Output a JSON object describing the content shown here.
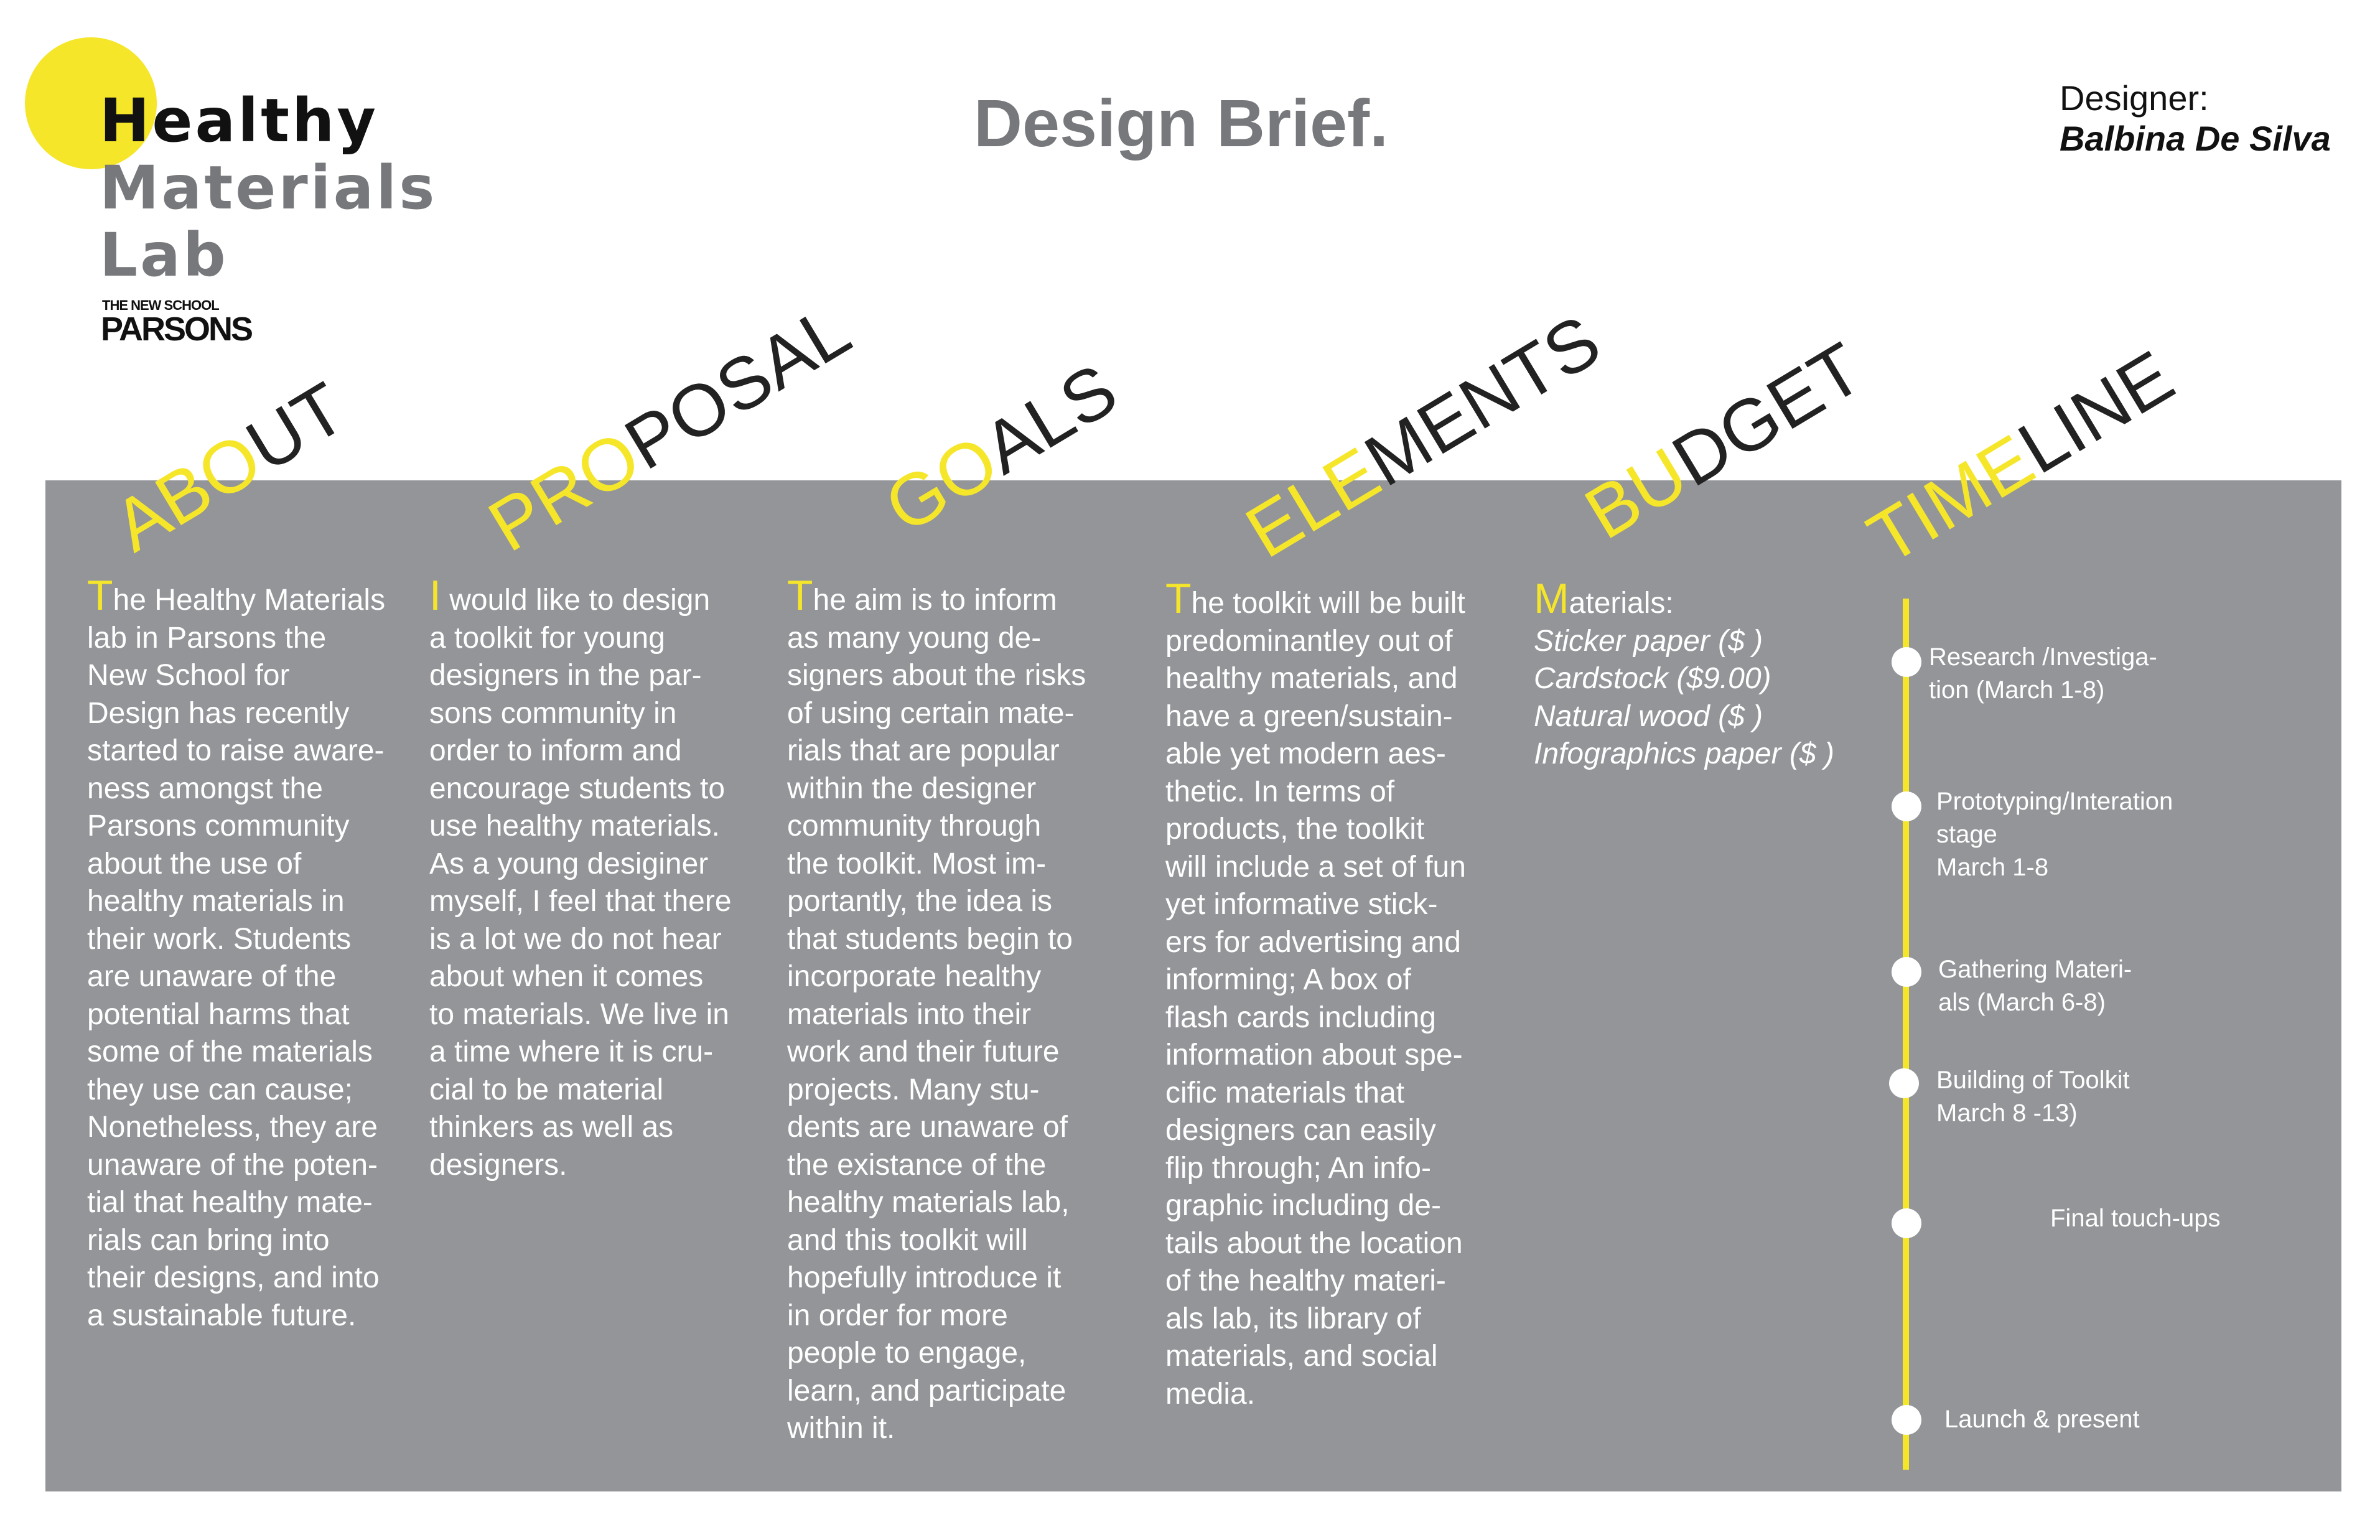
{
  "logo": {
    "line1": "Healthy",
    "line2": "Materials",
    "line3": "Lab",
    "sub": "THE NEW SCHOOL",
    "brand": "PARSONS"
  },
  "title": "Design Brief.",
  "designer": {
    "label": "Designer:",
    "name": "Balbina De Silva"
  },
  "colors": {
    "accent": "#f6e62a",
    "panel": "#939598",
    "text_gray": "#77787b"
  },
  "headings": {
    "about": {
      "accent": "ABO",
      "rest": "UT"
    },
    "proposal": {
      "accent": "PRO",
      "rest": "POSAL"
    },
    "goals": {
      "accent": "GO",
      "rest": "ALS"
    },
    "elements": {
      "accent": "ELE",
      "rest": "MENTS"
    },
    "budget": {
      "accent": "BU",
      "rest": "DGET"
    },
    "timeline": {
      "accent": "TIME",
      "rest": "LINE"
    }
  },
  "about": {
    "drop": "T",
    "lines": [
      "he Healthy Materials",
      "lab in Parsons the",
      "New School for",
      "Design has recently",
      "started to raise aware-",
      "ness amongst the",
      "Parsons community",
      "about the use of",
      "healthy materials in",
      "their work. Students",
      "are unaware of the",
      "potential harms that",
      "some of the materials",
      "they use can cause;",
      "Nonetheless, they are",
      "unaware of the poten-",
      "tial that healthy mate-",
      "rials can bring into",
      "their designs, and into",
      "a sustainable future."
    ]
  },
  "proposal": {
    "drop": "I",
    "lines": [
      " would like to design",
      "a toolkit for young",
      "designers in the par-",
      "sons community in",
      "order to inform and",
      "encourage students to",
      "use healthy materials.",
      "As a young desiginer",
      "myself, I feel that there",
      "is a lot we do not hear",
      "about when it comes",
      "to materials. We live in",
      "a time where it is cru-",
      "cial to be material",
      "thinkers as well as",
      "designers."
    ]
  },
  "goals": {
    "drop": "T",
    "lines": [
      "he aim is to inform",
      "as many young de-",
      "signers about the risks",
      "of using certain mate-",
      "rials that are popular",
      "within the designer",
      "community through",
      "the toolkit. Most im-",
      "portantly, the idea is",
      "that students begin to",
      "incorporate healthy",
      "materials into their",
      "work and their future",
      "projects. Many stu-",
      "dents are unaware of",
      "the existance of the",
      "healthy materials lab,",
      "and this toolkit will",
      "hopefully introduce it",
      "in order for more",
      "people to engage,",
      "learn, and participate",
      "within it."
    ]
  },
  "elements": {
    "drop": "T",
    "lines": [
      "he toolkit will be built",
      "predominantley out of",
      "healthy materials, and",
      "have a green/sustain-",
      "able yet modern aes-",
      "thetic. In terms of",
      "products, the toolkit",
      "will include a set of fun",
      "yet informative stick-",
      "ers for advertising and",
      "informing; A box of",
      "flash cards including",
      "information about spe-",
      "cific materials that",
      "designers can easily",
      "flip through; An info-",
      "graphic including de-",
      "tails about the location",
      "of the healthy materi-",
      "als lab, its library of",
      "materials, and social",
      "media."
    ]
  },
  "budget": {
    "drop": "M",
    "heading": "aterials:",
    "items": [
      "Sticker paper ($ )",
      "Cardstock ($9.00)",
      "Natural wood ($ )",
      "Infographics paper ($ )"
    ]
  },
  "timeline": [
    {
      "lines": [
        "Research /Investiga-",
        "tion (March 1-8)"
      ]
    },
    {
      "lines": [
        "Prototyping/Interation",
        "stage",
        "March 1-8"
      ]
    },
    {
      "lines": [
        "Gathering Materi-",
        "als (March 6-8)"
      ]
    },
    {
      "lines": [
        "Building of Toolkit",
        "March 8 -13)"
      ]
    },
    {
      "lines": [
        "Final touch-ups"
      ]
    },
    {
      "lines": [
        "Launch & present"
      ]
    }
  ]
}
